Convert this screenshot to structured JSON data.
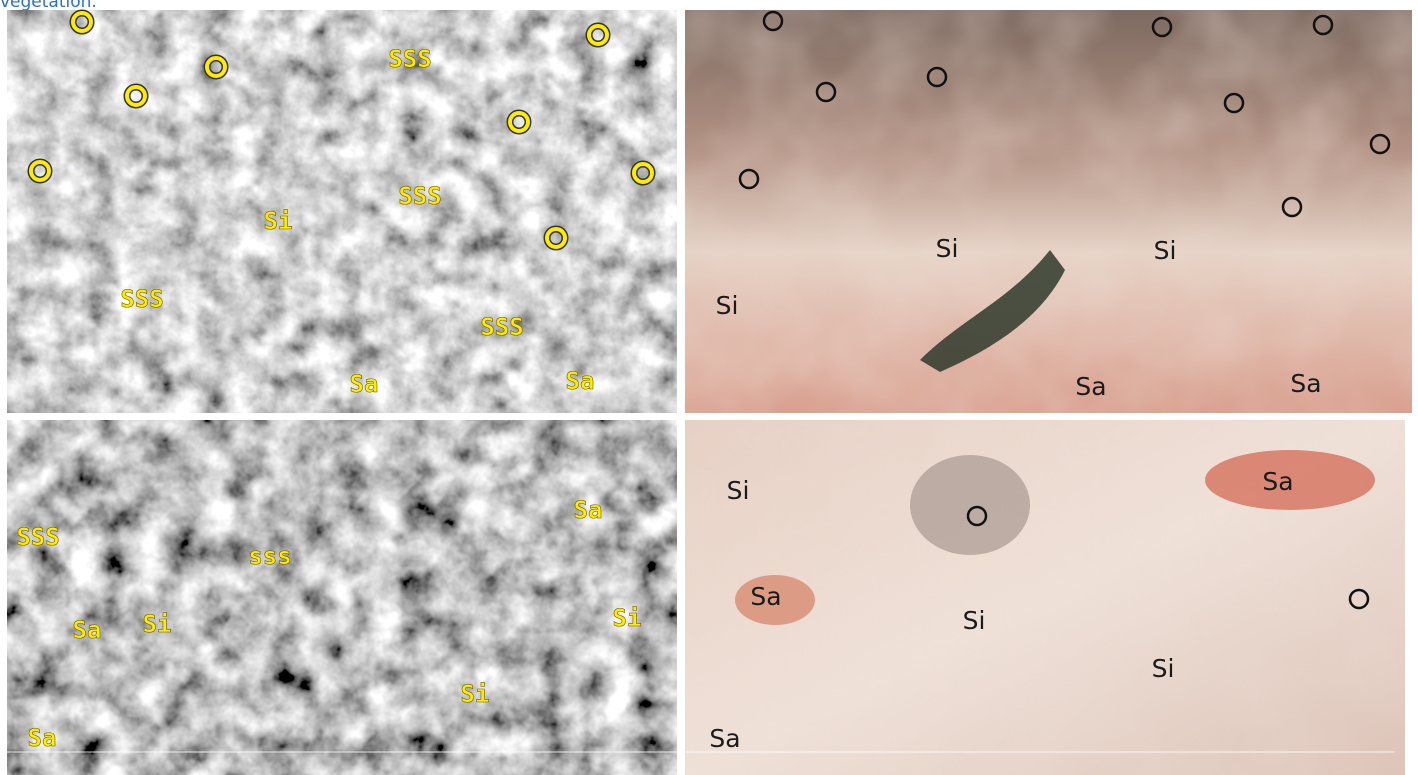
{
  "caption": "vegetation.",
  "panels": [
    {
      "labels": [
        "SSS",
        "SSS",
        "Si",
        "SSS",
        "SSS",
        "Sa",
        "Sa"
      ]
    },
    {
      "labels": [
        "Si",
        "Si",
        "Si",
        "Sa",
        "Sa"
      ]
    },
    {
      "labels": [
        "SSS",
        "sss",
        "Sa",
        "Sa",
        "Si",
        "Si",
        "Si",
        "Sa"
      ]
    },
    {
      "labels": [
        "Si",
        "Sa",
        "Sa",
        "Si",
        "Si",
        "Sa"
      ]
    }
  ]
}
